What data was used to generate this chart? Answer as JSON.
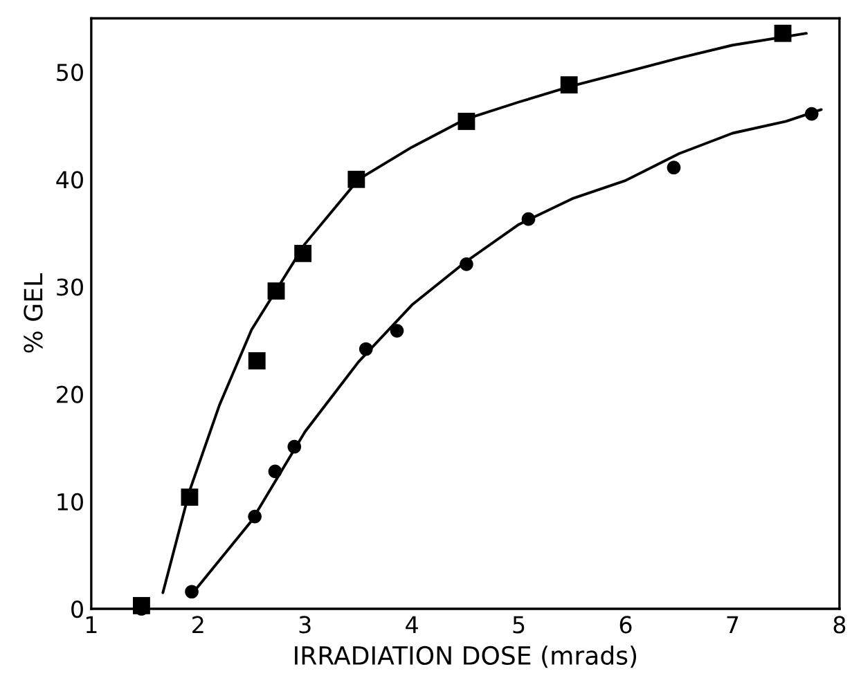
{
  "chart_data": {
    "type": "scatter",
    "xlabel": "IRRADIATION DOSE (mrads)",
    "ylabel": "% GEL",
    "xlim": [
      1,
      8
    ],
    "xticks": [
      1,
      2,
      3,
      4,
      5,
      6,
      7,
      8
    ],
    "ylim": [
      0,
      55
    ],
    "yticks": [
      0,
      10,
      20,
      30,
      40,
      50
    ],
    "grid": false,
    "legend": false,
    "series": [
      {
        "marker": "square",
        "color": "#000000",
        "x": [
          1.47,
          1.92,
          2.55,
          2.73,
          2.98,
          3.48,
          4.51,
          5.47,
          7.47
        ],
        "values": [
          0.3,
          10.4,
          23.1,
          29.6,
          33.1,
          40.0,
          45.4,
          48.8,
          53.6
        ]
      },
      {
        "marker": "circle",
        "color": "#000000",
        "x": [
          1.47,
          1.94,
          2.53,
          2.72,
          2.9,
          3.57,
          3.86,
          4.51,
          5.09,
          6.45,
          7.74
        ],
        "values": [
          0,
          1.6,
          8.6,
          12.8,
          15.1,
          24.2,
          25.9,
          32.1,
          36.3,
          41.1,
          46.1
        ]
      },
      {
        "type": "line",
        "marker": "none",
        "line_style": "solid",
        "color": "#000000",
        "x": [
          1.67,
          1.92,
          2.2,
          2.5,
          2.75,
          3.0,
          3.5,
          4.0,
          4.5,
          5.0,
          5.5,
          6.0,
          6.5,
          7.0,
          7.5,
          7.69
        ],
        "values": [
          1.5,
          11,
          19,
          26,
          30,
          34,
          40,
          43,
          45.6,
          47.2,
          48.7,
          50,
          51.3,
          52.5,
          53.3,
          53.6
        ]
      },
      {
        "type": "line",
        "marker": "none",
        "line_style": "solid",
        "color": "#000000",
        "x": [
          1.96,
          2.5,
          3.0,
          3.5,
          4.0,
          4.5,
          5.0,
          5.5,
          6.0,
          6.5,
          7.0,
          7.5,
          7.83
        ],
        "values": [
          1.6,
          8.2,
          16.5,
          23,
          28.3,
          32.3,
          35.8,
          38.2,
          39.9,
          42.4,
          44.3,
          45.4,
          46.5
        ]
      }
    ]
  }
}
